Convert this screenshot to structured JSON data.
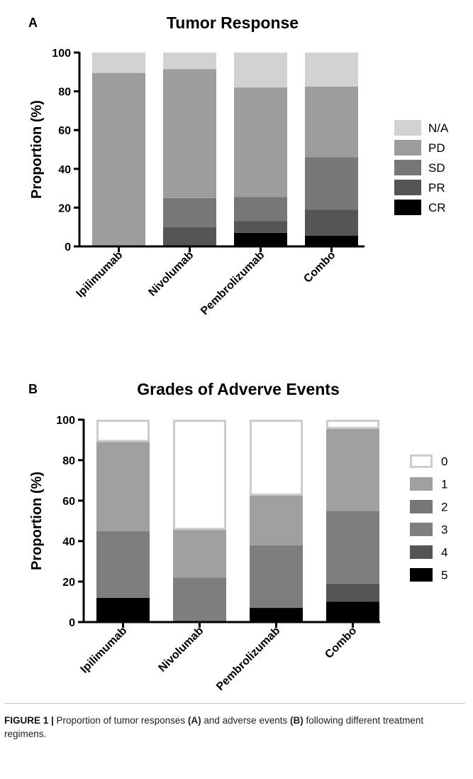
{
  "chart_data": [
    {
      "type": "bar",
      "stacked": true,
      "panel_label": "A",
      "title": "Tumor Response",
      "xlabel": "",
      "ylabel": "Proportion (%)",
      "ylim": [
        0,
        100
      ],
      "yticks": [
        "0",
        "20",
        "40",
        "60",
        "80",
        "100"
      ],
      "categories": [
        "Ipilimumab",
        "Nivolumab",
        "Pembrolizumab",
        "Combo"
      ],
      "series": [
        {
          "name": "CR",
          "color": "#000000",
          "values": [
            0,
            0,
            7,
            5.5
          ]
        },
        {
          "name": "PR",
          "color": "#555555",
          "values": [
            0,
            10,
            6,
            13.5
          ]
        },
        {
          "name": "SD",
          "color": "#777777",
          "values": [
            0,
            15,
            12.5,
            27
          ]
        },
        {
          "name": "PD",
          "color": "#9d9d9d",
          "values": [
            89.5,
            66.5,
            56.5,
            36.5
          ]
        },
        {
          "name": "N/A",
          "color": "#d2d2d2",
          "values": [
            10.5,
            8.5,
            18,
            17.5
          ]
        }
      ],
      "legend_order": [
        "N/A",
        "PD",
        "SD",
        "PR",
        "CR"
      ],
      "legend_position": "right",
      "grid": false
    },
    {
      "type": "bar",
      "stacked": true,
      "panel_label": "B",
      "title": "Grades of Adverve Events",
      "xlabel": "",
      "ylabel": "Proportion (%)",
      "ylim": [
        0,
        100
      ],
      "yticks": [
        "0",
        "20",
        "40",
        "60",
        "80",
        "100"
      ],
      "categories": [
        "Ipilimumab",
        "Nivolumab",
        "Pembrolizumab",
        "Combo"
      ],
      "series": [
        {
          "name": "5",
          "color": "#000000",
          "values": [
            12,
            0,
            7,
            10
          ]
        },
        {
          "name": "4",
          "color": "#555555",
          "values": [
            0,
            0,
            0,
            9
          ]
        },
        {
          "name": "3",
          "color": "#7e7e7e",
          "values": [
            33,
            22,
            31,
            36
          ]
        },
        {
          "name": "2",
          "color": "#777777",
          "values": [
            0,
            0,
            0,
            0
          ]
        },
        {
          "name": "1",
          "color": "#a0a0a0",
          "values": [
            44.5,
            24,
            25,
            41
          ]
        },
        {
          "name": "0",
          "color": "#ffffff",
          "stroke": "#cccccc",
          "values": [
            10.5,
            54,
            37,
            4
          ]
        }
      ],
      "legend_order": [
        "0",
        "1",
        "2",
        "3",
        "4",
        "5"
      ],
      "legend_position": "right",
      "grid": false
    }
  ],
  "caption": {
    "label": "FIGURE 1 |",
    "text_1": " Proportion of tumor responses ",
    "ref_a": "(A)",
    "text_2": " and adverse events ",
    "ref_b": "(B)",
    "text_3": " following different treatment regimens."
  }
}
